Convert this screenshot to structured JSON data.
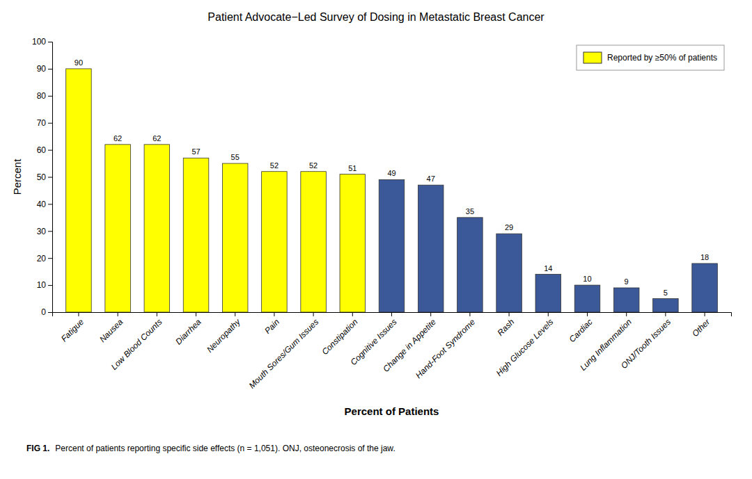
{
  "chart_data": {
    "type": "bar",
    "title": "Patient Advocate−Led Survey of Dosing in Metastatic Breast Cancer",
    "x_label": "Percent of Patients",
    "y_label": "Percent",
    "categories": [
      "Fatigue",
      "Nausea",
      "Low Blood Counts",
      "Diarrhea",
      "Neuropathy",
      "Pain",
      "Mouth Sores/Gum Issues",
      "Constipation",
      "Cognitive Issues",
      "Change in Appetite",
      "Hand-Foot Syndrome",
      "Rash",
      "High Glucose Levels",
      "Cardiac",
      "Lung Inflammation",
      "ONJ/Tooth Issues",
      "Other"
    ],
    "series": [
      {
        "name": "Reported by ≥50% of patients",
        "color": "#FFFF00",
        "values": [
          90,
          62,
          62,
          57,
          55,
          52,
          52,
          51,
          49,
          47,
          35,
          29,
          14,
          10,
          9,
          5,
          18
        ],
        "colors": [
          "#FFFF00",
          "#FFFF00",
          "#FFFF00",
          "#FFFF00",
          "#FFFF00",
          "#FFFF00",
          "#FFFF00",
          "#FFFF00",
          "#3B5998",
          "#3B5998",
          "#3B5998",
          "#3B5998",
          "#3B5998",
          "#3B5998",
          "#3B5998",
          "#3B5998",
          "#3B5998"
        ]
      }
    ],
    "ylim": [
      0,
      100
    ],
    "yticks": [
      0,
      10,
      20,
      30,
      40,
      50,
      60,
      70,
      80,
      90,
      100
    ],
    "grid": false,
    "legend": "upper right",
    "data_labels": true,
    "annotations": [
      "FIG 1.",
      "Percent of patients reporting specific side effects (n = 1,051). ONJ, osteonecrosis of the jaw."
    ]
  }
}
